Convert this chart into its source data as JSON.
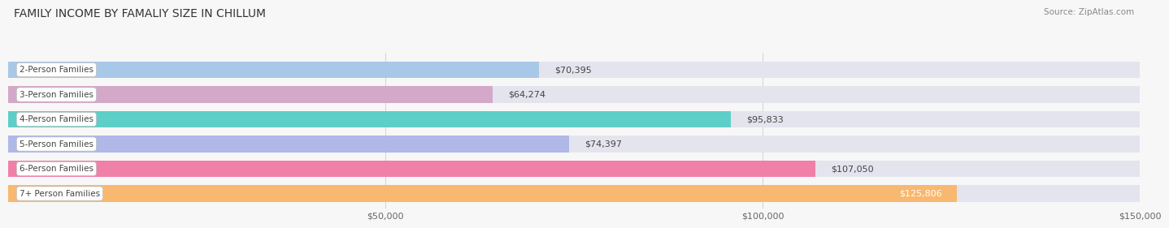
{
  "title": "FAMILY INCOME BY FAMALIY SIZE IN CHILLUM",
  "source": "Source: ZipAtlas.com",
  "categories": [
    "2-Person Families",
    "3-Person Families",
    "4-Person Families",
    "5-Person Families",
    "6-Person Families",
    "7+ Person Families"
  ],
  "values": [
    70395,
    64274,
    95833,
    74397,
    107050,
    125806
  ],
  "labels": [
    "$70,395",
    "$64,274",
    "$95,833",
    "$74,397",
    "$107,050",
    "$125,806"
  ],
  "bar_colors": [
    "#a8c8e8",
    "#d4a8c8",
    "#5ecec8",
    "#b0b8e8",
    "#f080a8",
    "#f8b870"
  ],
  "bar_bg_color": "#e4e4ee",
  "xlim": [
    0,
    150000
  ],
  "xtick_labels": [
    "$50,000",
    "$100,000",
    "$150,000"
  ],
  "xtick_vals": [
    50000,
    100000,
    150000
  ],
  "bg_color": "#f7f7f7",
  "title_fontsize": 10,
  "source_fontsize": 7.5,
  "label_fontsize": 8,
  "cat_fontsize": 7.5,
  "bar_height": 0.68,
  "bar_label_inside_threshold": 115000,
  "label_inside_color": "white",
  "label_outside_color": "#444444"
}
